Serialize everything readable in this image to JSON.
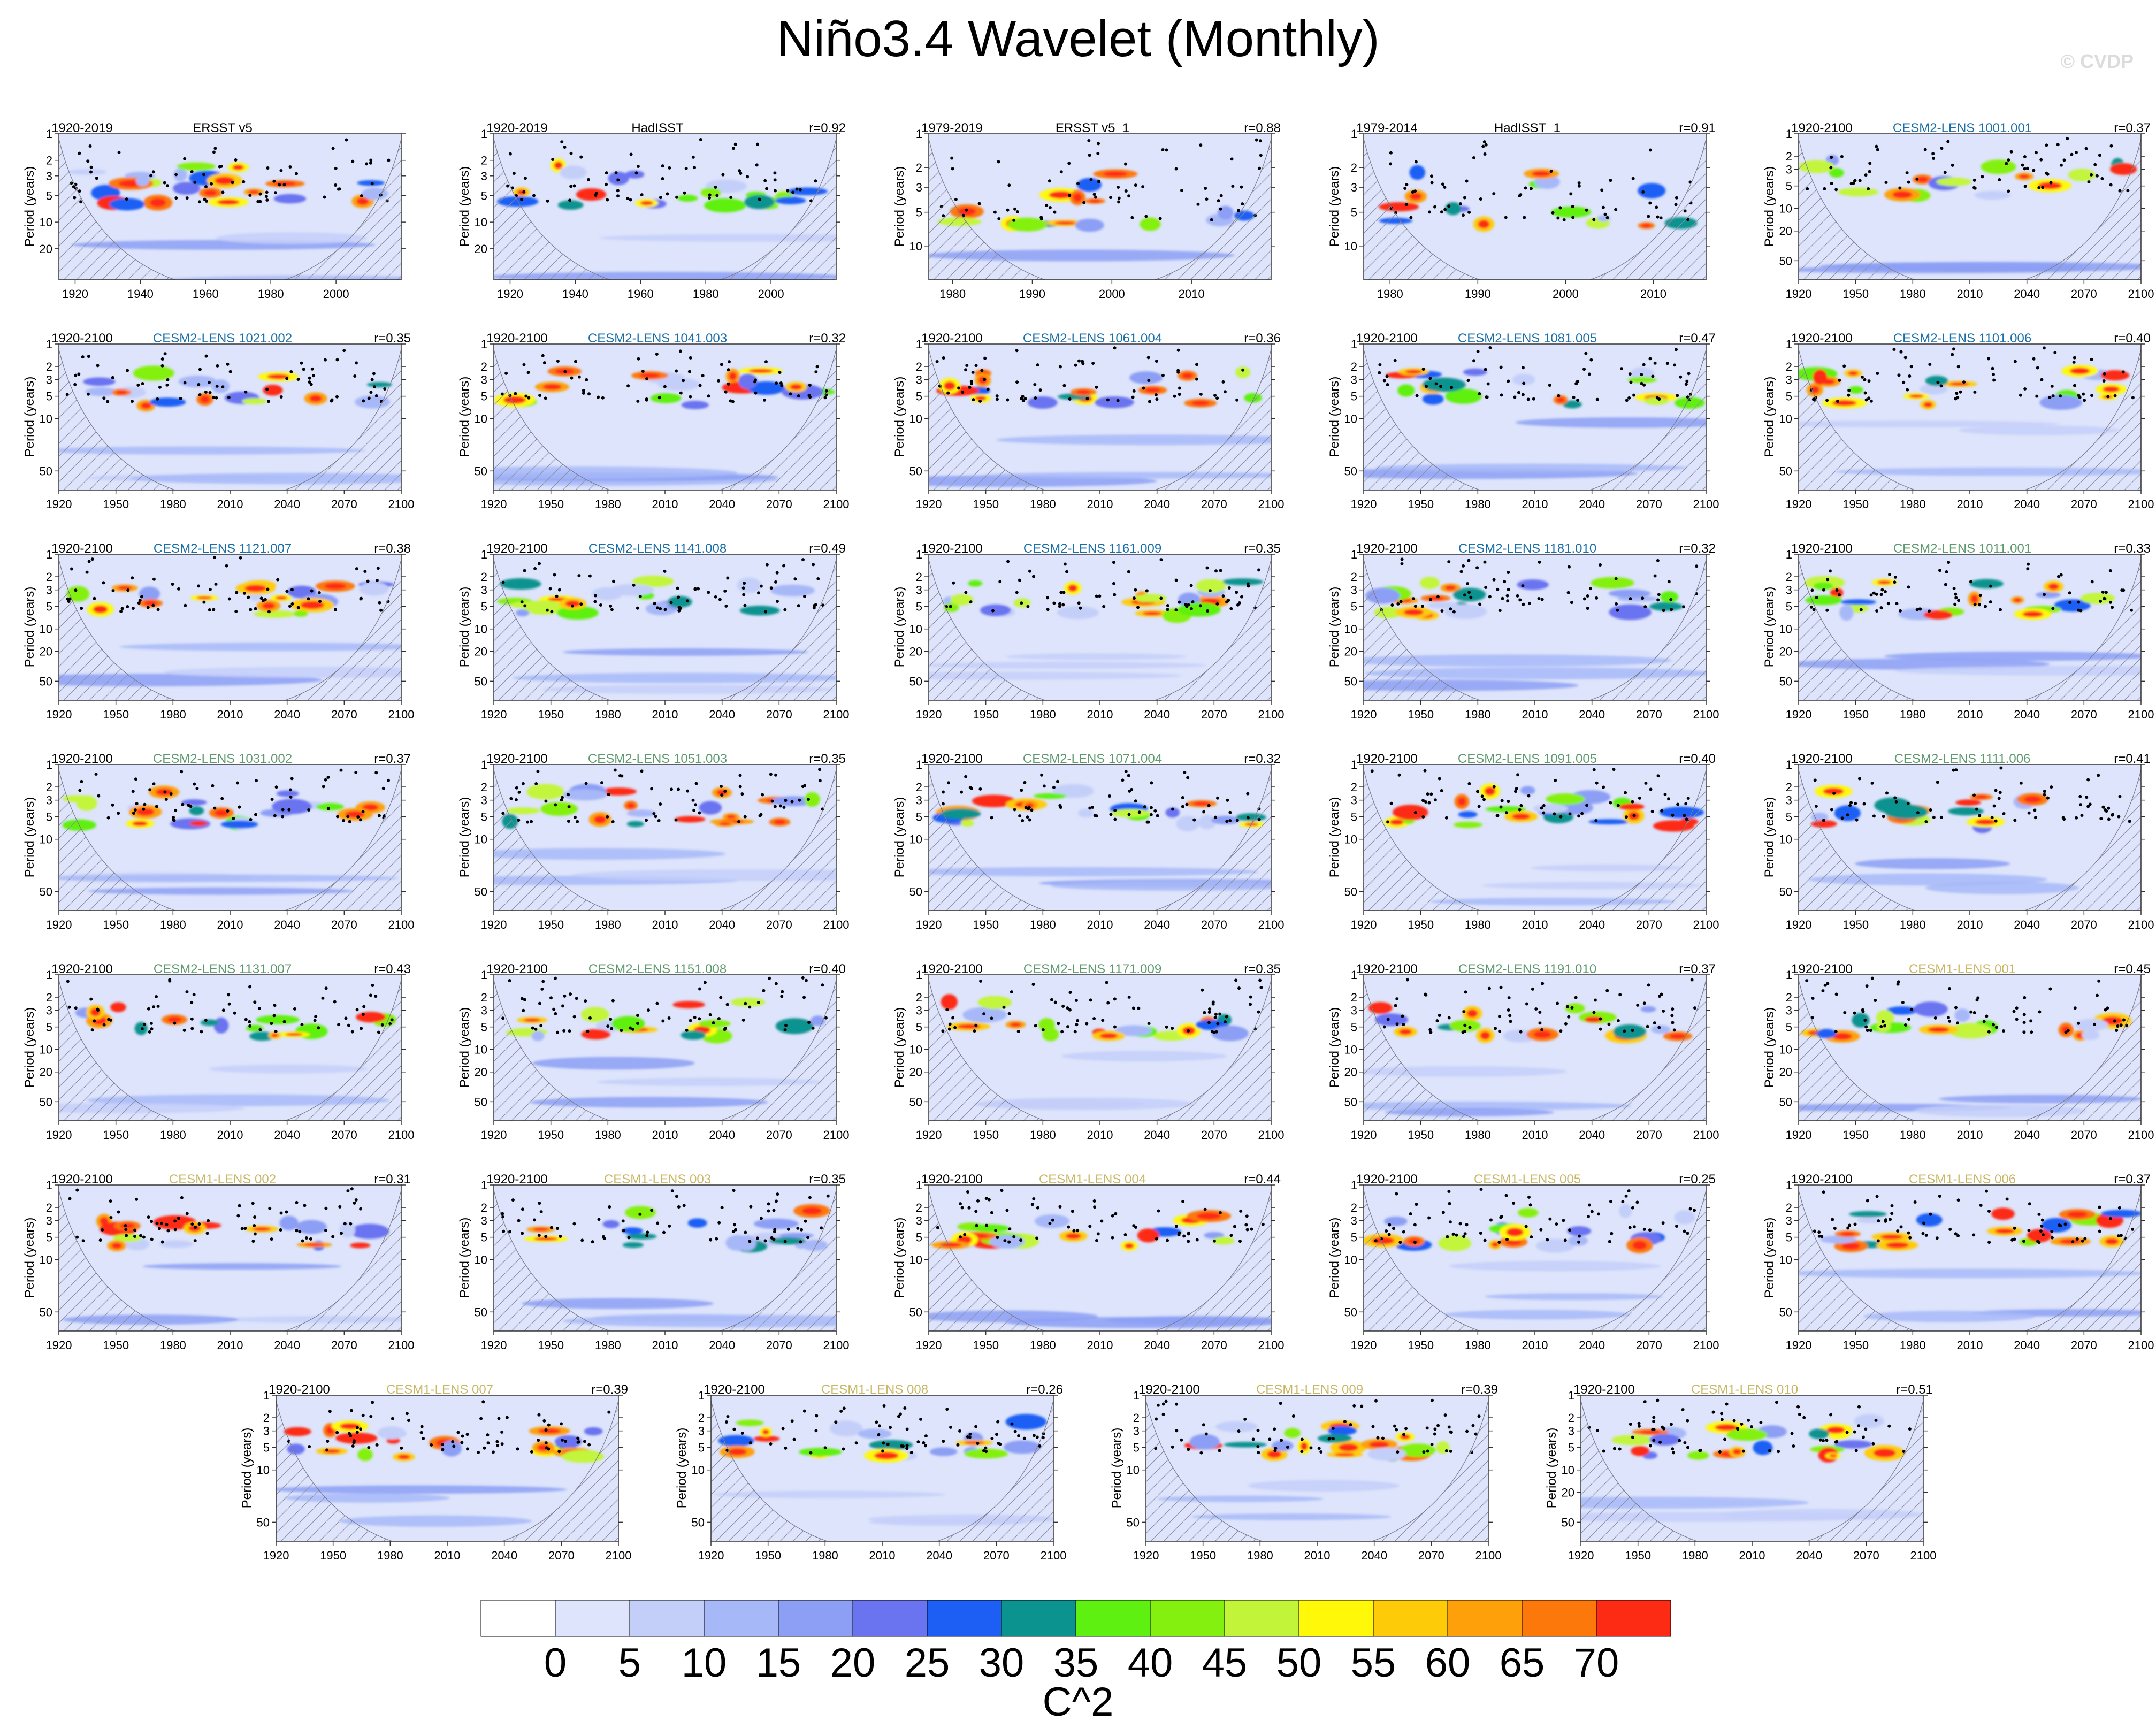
{
  "title": "Niño3.4 Wavelet (Monthly)",
  "watermark": "© CVDP",
  "y_axis_label": "Period (years)",
  "colorbar": {
    "unit": "C^2",
    "ticks": [
      "0",
      "5",
      "10",
      "15",
      "20",
      "25",
      "30",
      "35",
      "40",
      "45",
      "50",
      "55",
      "60",
      "65",
      "70"
    ],
    "colors": [
      "#ffffff",
      "#dde4fb",
      "#c4cff9",
      "#a7b8f8",
      "#8c9ff5",
      "#6a73f0",
      "#1d5ff5",
      "#0a938f",
      "#5ef011",
      "#84f010",
      "#c2f53a",
      "#fff808",
      "#fecb08",
      "#fda00a",
      "#fd780a",
      "#fd2a14"
    ]
  },
  "chart_data": {
    "type": "heatmap",
    "title": "Niño3.4 Wavelet (Monthly)",
    "ylabel": "Period (years)",
    "colorbar_unit": "C^2",
    "clim": [
      0,
      70
    ],
    "panels": [
      {
        "name": "ERSST v5",
        "period": "1920-2019",
        "r": "",
        "name_color": "#000000",
        "xlim": [
          1915,
          2020
        ],
        "xticks": [
          "1920",
          "1940",
          "1960",
          "1980",
          "2000"
        ],
        "yticks": [
          "1",
          "2",
          "3",
          "5",
          "10",
          "20"
        ],
        "ylim": [
          1,
          45
        ]
      },
      {
        "name": "HadISST",
        "period": "1920-2019",
        "r": "r=0.92",
        "name_color": "#000000",
        "xlim": [
          1915,
          2020
        ],
        "xticks": [
          "1920",
          "1940",
          "1960",
          "1980",
          "2000"
        ],
        "yticks": [
          "1",
          "2",
          "3",
          "5",
          "10",
          "20"
        ],
        "ylim": [
          1,
          45
        ]
      },
      {
        "name": "ERSST v5_1",
        "period": "1979-2019",
        "r": "r=0.88",
        "name_color": "#000000",
        "xlim": [
          1977,
          2020
        ],
        "xticks": [
          "1980",
          "1990",
          "2000",
          "2010"
        ],
        "yticks": [
          "1",
          "2",
          "3",
          "5",
          "10"
        ],
        "ylim": [
          1,
          20
        ]
      },
      {
        "name": "HadISST_1",
        "period": "1979-2014",
        "r": "r=0.91",
        "name_color": "#000000",
        "xlim": [
          1977,
          2016
        ],
        "xticks": [
          "1980",
          "1990",
          "2000",
          "2010"
        ],
        "yticks": [
          "1",
          "2",
          "3",
          "5",
          "10"
        ],
        "ylim": [
          1,
          20
        ]
      },
      {
        "name": "CESM2-LENS 1001.001",
        "period": "1920-2100",
        "r": "r=0.37",
        "name_color": "#1a6fa8",
        "xlim": [
          1920,
          2100
        ],
        "xticks": [
          "1920",
          "1950",
          "1980",
          "2010",
          "2040",
          "2070",
          "2100"
        ],
        "yticks": [
          "1",
          "2",
          "3",
          "5",
          "10",
          "20",
          "50"
        ],
        "ylim": [
          1,
          90
        ]
      },
      {
        "name": "CESM2-LENS 1021.002",
        "period": "1920-2100",
        "r": "r=0.35",
        "name_color": "#1a6fa8",
        "xlim": [
          1920,
          2100
        ],
        "xticks": [
          "1920",
          "1950",
          "1980",
          "2010",
          "2040",
          "2070",
          "2100"
        ],
        "yticks": [
          "1",
          "2",
          "3",
          "5",
          "10",
          "50"
        ],
        "ylim": [
          1,
          90
        ]
      },
      {
        "name": "CESM2-LENS 1041.003",
        "period": "1920-2100",
        "r": "r=0.32",
        "name_color": "#1a6fa8",
        "xlim": [
          1920,
          2100
        ],
        "xticks": [
          "1920",
          "1950",
          "1980",
          "2010",
          "2040",
          "2070",
          "2100"
        ],
        "yticks": [
          "1",
          "2",
          "3",
          "5",
          "10",
          "50"
        ],
        "ylim": [
          1,
          90
        ]
      },
      {
        "name": "CESM2-LENS 1061.004",
        "period": "1920-2100",
        "r": "r=0.36",
        "name_color": "#1a6fa8",
        "xlim": [
          1920,
          2100
        ],
        "xticks": [
          "1920",
          "1950",
          "1980",
          "2010",
          "2040",
          "2070",
          "2100"
        ],
        "yticks": [
          "1",
          "2",
          "3",
          "5",
          "10",
          "50"
        ],
        "ylim": [
          1,
          90
        ]
      },
      {
        "name": "CESM2-LENS 1081.005",
        "period": "1920-2100",
        "r": "r=0.47",
        "name_color": "#1a6fa8",
        "xlim": [
          1920,
          2100
        ],
        "xticks": [
          "1920",
          "1950",
          "1980",
          "2010",
          "2040",
          "2070",
          "2100"
        ],
        "yticks": [
          "1",
          "2",
          "3",
          "5",
          "10",
          "50"
        ],
        "ylim": [
          1,
          90
        ]
      },
      {
        "name": "CESM2-LENS 1101.006",
        "period": "1920-2100",
        "r": "r=0.40",
        "name_color": "#1a6fa8",
        "xlim": [
          1920,
          2100
        ],
        "xticks": [
          "1920",
          "1950",
          "1980",
          "2010",
          "2040",
          "2070",
          "2100"
        ],
        "yticks": [
          "1",
          "2",
          "3",
          "5",
          "10",
          "50"
        ],
        "ylim": [
          1,
          90
        ]
      },
      {
        "name": "CESM2-LENS 1121.007",
        "period": "1920-2100",
        "r": "r=0.38",
        "name_color": "#1a6fa8",
        "xlim": [
          1920,
          2100
        ],
        "xticks": [
          "1920",
          "1950",
          "1980",
          "2010",
          "2040",
          "2070",
          "2100"
        ],
        "yticks": [
          "1",
          "2",
          "3",
          "5",
          "10",
          "20",
          "50"
        ],
        "ylim": [
          1,
          90
        ]
      },
      {
        "name": "CESM2-LENS 1141.008",
        "period": "1920-2100",
        "r": "r=0.49",
        "name_color": "#1a6fa8",
        "xlim": [
          1920,
          2100
        ],
        "xticks": [
          "1920",
          "1950",
          "1980",
          "2010",
          "2040",
          "2070",
          "2100"
        ],
        "yticks": [
          "1",
          "2",
          "3",
          "5",
          "10",
          "20",
          "50"
        ],
        "ylim": [
          1,
          90
        ]
      },
      {
        "name": "CESM2-LENS 1161.009",
        "period": "1920-2100",
        "r": "r=0.35",
        "name_color": "#1a6fa8",
        "xlim": [
          1920,
          2100
        ],
        "xticks": [
          "1920",
          "1950",
          "1980",
          "2010",
          "2040",
          "2070",
          "2100"
        ],
        "yticks": [
          "1",
          "2",
          "3",
          "5",
          "10",
          "20",
          "50"
        ],
        "ylim": [
          1,
          90
        ]
      },
      {
        "name": "CESM2-LENS 1181.010",
        "period": "1920-2100",
        "r": "r=0.32",
        "name_color": "#1a6fa8",
        "xlim": [
          1920,
          2100
        ],
        "xticks": [
          "1920",
          "1950",
          "1980",
          "2010",
          "2040",
          "2070",
          "2100"
        ],
        "yticks": [
          "1",
          "2",
          "3",
          "5",
          "10",
          "20",
          "50"
        ],
        "ylim": [
          1,
          90
        ]
      },
      {
        "name": "CESM2-LENS 1011.001",
        "period": "1920-2100",
        "r": "r=0.33",
        "name_color": "#5e9a6e",
        "xlim": [
          1920,
          2100
        ],
        "xticks": [
          "1920",
          "1950",
          "1980",
          "2010",
          "2040",
          "2070",
          "2100"
        ],
        "yticks": [
          "1",
          "2",
          "3",
          "5",
          "10",
          "20",
          "50"
        ],
        "ylim": [
          1,
          90
        ]
      },
      {
        "name": "CESM2-LENS 1031.002",
        "period": "1920-2100",
        "r": "r=0.37",
        "name_color": "#5e9a6e",
        "xlim": [
          1920,
          2100
        ],
        "xticks": [
          "1920",
          "1950",
          "1980",
          "2010",
          "2040",
          "2070",
          "2100"
        ],
        "yticks": [
          "1",
          "2",
          "3",
          "5",
          "10",
          "50"
        ],
        "ylim": [
          1,
          90
        ]
      },
      {
        "name": "CESM2-LENS 1051.003",
        "period": "1920-2100",
        "r": "r=0.35",
        "name_color": "#5e9a6e",
        "xlim": [
          1920,
          2100
        ],
        "xticks": [
          "1920",
          "1950",
          "1980",
          "2010",
          "2040",
          "2070",
          "2100"
        ],
        "yticks": [
          "1",
          "2",
          "3",
          "5",
          "10",
          "50"
        ],
        "ylim": [
          1,
          90
        ]
      },
      {
        "name": "CESM2-LENS 1071.004",
        "period": "1920-2100",
        "r": "r=0.32",
        "name_color": "#5e9a6e",
        "xlim": [
          1920,
          2100
        ],
        "xticks": [
          "1920",
          "1950",
          "1980",
          "2010",
          "2040",
          "2070",
          "2100"
        ],
        "yticks": [
          "1",
          "2",
          "3",
          "5",
          "10",
          "50"
        ],
        "ylim": [
          1,
          90
        ]
      },
      {
        "name": "CESM2-LENS 1091.005",
        "period": "1920-2100",
        "r": "r=0.40",
        "name_color": "#5e9a6e",
        "xlim": [
          1920,
          2100
        ],
        "xticks": [
          "1920",
          "1950",
          "1980",
          "2010",
          "2040",
          "2070",
          "2100"
        ],
        "yticks": [
          "1",
          "2",
          "3",
          "5",
          "10",
          "50"
        ],
        "ylim": [
          1,
          90
        ]
      },
      {
        "name": "CESM2-LENS 1111.006",
        "period": "1920-2100",
        "r": "r=0.41",
        "name_color": "#5e9a6e",
        "xlim": [
          1920,
          2100
        ],
        "xticks": [
          "1920",
          "1950",
          "1980",
          "2010",
          "2040",
          "2070",
          "2100"
        ],
        "yticks": [
          "1",
          "2",
          "3",
          "5",
          "10",
          "50"
        ],
        "ylim": [
          1,
          90
        ]
      },
      {
        "name": "CESM2-LENS 1131.007",
        "period": "1920-2100",
        "r": "r=0.43",
        "name_color": "#5e9a6e",
        "xlim": [
          1920,
          2100
        ],
        "xticks": [
          "1920",
          "1950",
          "1980",
          "2010",
          "2040",
          "2070",
          "2100"
        ],
        "yticks": [
          "1",
          "2",
          "3",
          "5",
          "10",
          "20",
          "50"
        ],
        "ylim": [
          1,
          90
        ]
      },
      {
        "name": "CESM2-LENS 1151.008",
        "period": "1920-2100",
        "r": "r=0.40",
        "name_color": "#5e9a6e",
        "xlim": [
          1920,
          2100
        ],
        "xticks": [
          "1920",
          "1950",
          "1980",
          "2010",
          "2040",
          "2070",
          "2100"
        ],
        "yticks": [
          "1",
          "2",
          "3",
          "5",
          "10",
          "20",
          "50"
        ],
        "ylim": [
          1,
          90
        ]
      },
      {
        "name": "CESM2-LENS 1171.009",
        "period": "1920-2100",
        "r": "r=0.35",
        "name_color": "#5e9a6e",
        "xlim": [
          1920,
          2100
        ],
        "xticks": [
          "1920",
          "1950",
          "1980",
          "2010",
          "2040",
          "2070",
          "2100"
        ],
        "yticks": [
          "1",
          "2",
          "3",
          "5",
          "10",
          "20",
          "50"
        ],
        "ylim": [
          1,
          90
        ]
      },
      {
        "name": "CESM2-LENS 1191.010",
        "period": "1920-2100",
        "r": "r=0.37",
        "name_color": "#5e9a6e",
        "xlim": [
          1920,
          2100
        ],
        "xticks": [
          "1920",
          "1950",
          "1980",
          "2010",
          "2040",
          "2070",
          "2100"
        ],
        "yticks": [
          "1",
          "2",
          "3",
          "5",
          "10",
          "20",
          "50"
        ],
        "ylim": [
          1,
          90
        ]
      },
      {
        "name": "CESM1-LENS 001",
        "period": "1920-2100",
        "r": "r=0.45",
        "name_color": "#c9b766",
        "xlim": [
          1920,
          2100
        ],
        "xticks": [
          "1920",
          "1950",
          "1980",
          "2010",
          "2040",
          "2070",
          "2100"
        ],
        "yticks": [
          "1",
          "2",
          "3",
          "5",
          "10",
          "20",
          "50"
        ],
        "ylim": [
          1,
          90
        ]
      },
      {
        "name": "CESM1-LENS 002",
        "period": "1920-2100",
        "r": "r=0.31",
        "name_color": "#c9b766",
        "xlim": [
          1920,
          2100
        ],
        "xticks": [
          "1920",
          "1950",
          "1980",
          "2010",
          "2040",
          "2070",
          "2100"
        ],
        "yticks": [
          "1",
          "2",
          "3",
          "5",
          "10",
          "50"
        ],
        "ylim": [
          1,
          90
        ]
      },
      {
        "name": "CESM1-LENS 003",
        "period": "1920-2100",
        "r": "r=0.35",
        "name_color": "#c9b766",
        "xlim": [
          1920,
          2100
        ],
        "xticks": [
          "1920",
          "1950",
          "1980",
          "2010",
          "2040",
          "2070",
          "2100"
        ],
        "yticks": [
          "1",
          "2",
          "3",
          "5",
          "10",
          "50"
        ],
        "ylim": [
          1,
          90
        ]
      },
      {
        "name": "CESM1-LENS 004",
        "period": "1920-2100",
        "r": "r=0.44",
        "name_color": "#c9b766",
        "xlim": [
          1920,
          2100
        ],
        "xticks": [
          "1920",
          "1950",
          "1980",
          "2010",
          "2040",
          "2070",
          "2100"
        ],
        "yticks": [
          "1",
          "2",
          "3",
          "5",
          "10",
          "50"
        ],
        "ylim": [
          1,
          90
        ]
      },
      {
        "name": "CESM1-LENS 005",
        "period": "1920-2100",
        "r": "r=0.25",
        "name_color": "#c9b766",
        "xlim": [
          1920,
          2100
        ],
        "xticks": [
          "1920",
          "1950",
          "1980",
          "2010",
          "2040",
          "2070",
          "2100"
        ],
        "yticks": [
          "1",
          "2",
          "3",
          "5",
          "10",
          "50"
        ],
        "ylim": [
          1,
          90
        ]
      },
      {
        "name": "CESM1-LENS 006",
        "period": "1920-2100",
        "r": "r=0.37",
        "name_color": "#c9b766",
        "xlim": [
          1920,
          2100
        ],
        "xticks": [
          "1920",
          "1950",
          "1980",
          "2010",
          "2040",
          "2070",
          "2100"
        ],
        "yticks": [
          "1",
          "2",
          "3",
          "5",
          "10",
          "50"
        ],
        "ylim": [
          1,
          90
        ]
      },
      {
        "name": "CESM1-LENS 007",
        "period": "1920-2100",
        "r": "r=0.39",
        "name_color": "#c9b766",
        "xlim": [
          1920,
          2100
        ],
        "xticks": [
          "1920",
          "1950",
          "1980",
          "2010",
          "2040",
          "2070",
          "2100"
        ],
        "yticks": [
          "1",
          "2",
          "3",
          "5",
          "10",
          "50"
        ],
        "ylim": [
          1,
          90
        ]
      },
      {
        "name": "CESM1-LENS 008",
        "period": "1920-2100",
        "r": "r=0.26",
        "name_color": "#c9b766",
        "xlim": [
          1920,
          2100
        ],
        "xticks": [
          "1920",
          "1950",
          "1980",
          "2010",
          "2040",
          "2070",
          "2100"
        ],
        "yticks": [
          "1",
          "2",
          "3",
          "5",
          "10",
          "50"
        ],
        "ylim": [
          1,
          90
        ]
      },
      {
        "name": "CESM1-LENS 009",
        "period": "1920-2100",
        "r": "r=0.39",
        "name_color": "#c9b766",
        "xlim": [
          1920,
          2100
        ],
        "xticks": [
          "1920",
          "1950",
          "1980",
          "2010",
          "2040",
          "2070",
          "2100"
        ],
        "yticks": [
          "1",
          "2",
          "3",
          "5",
          "10",
          "50"
        ],
        "ylim": [
          1,
          90
        ]
      },
      {
        "name": "CESM1-LENS 010",
        "period": "1920-2100",
        "r": "r=0.51",
        "name_color": "#c9b766",
        "xlim": [
          1920,
          2100
        ],
        "xticks": [
          "1920",
          "1950",
          "1980",
          "2010",
          "2040",
          "2070",
          "2100"
        ],
        "yticks": [
          "1",
          "2",
          "3",
          "5",
          "10",
          "20",
          "50"
        ],
        "ylim": [
          1,
          90
        ]
      }
    ]
  }
}
